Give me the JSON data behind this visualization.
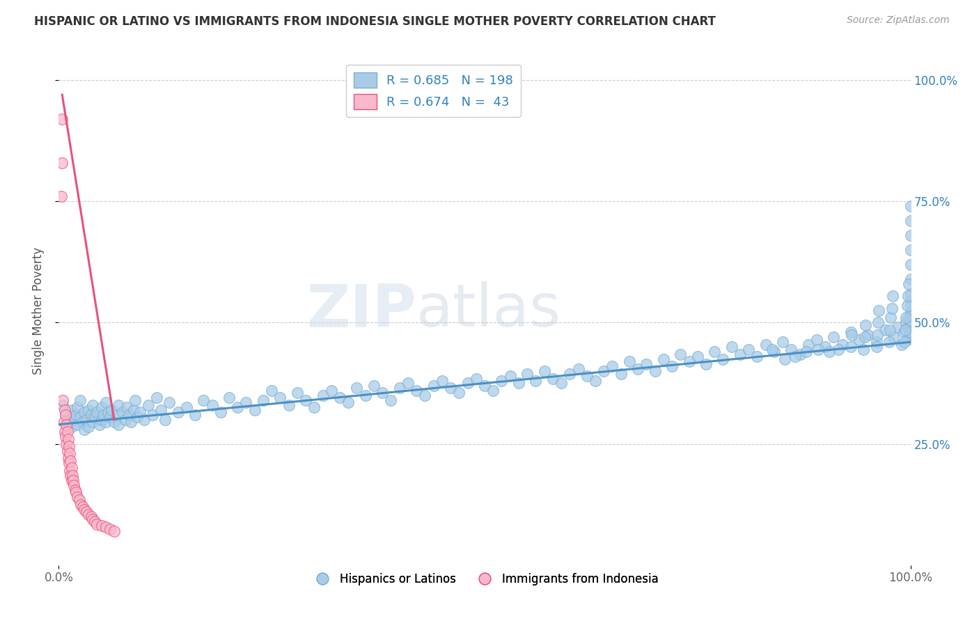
{
  "title": "HISPANIC OR LATINO VS IMMIGRANTS FROM INDONESIA SINGLE MOTHER POVERTY CORRELATION CHART",
  "source": "Source: ZipAtlas.com",
  "ylabel": "Single Mother Poverty",
  "watermark": "ZIPatlas",
  "blue_line_color": "#4a90c4",
  "pink_line_color": "#e8507a",
  "blue_scatter_color": "#a8cce8",
  "blue_scatter_edge": "#7aaed0",
  "pink_scatter_color": "#f9b8cb",
  "pink_scatter_edge": "#e8507a",
  "background_color": "#ffffff",
  "grid_color": "#cccccc",
  "title_color": "#333333",
  "legend_text_color": "#3182bd",
  "blue_points": [
    [
      0.005,
      0.33
    ],
    [
      0.008,
      0.31
    ],
    [
      0.01,
      0.305
    ],
    [
      0.012,
      0.295
    ],
    [
      0.015,
      0.32
    ],
    [
      0.015,
      0.285
    ],
    [
      0.018,
      0.3
    ],
    [
      0.02,
      0.31
    ],
    [
      0.022,
      0.325
    ],
    [
      0.022,
      0.29
    ],
    [
      0.025,
      0.305
    ],
    [
      0.025,
      0.34
    ],
    [
      0.028,
      0.295
    ],
    [
      0.03,
      0.315
    ],
    [
      0.03,
      0.28
    ],
    [
      0.032,
      0.3
    ],
    [
      0.035,
      0.32
    ],
    [
      0.035,
      0.285
    ],
    [
      0.038,
      0.31
    ],
    [
      0.04,
      0.295
    ],
    [
      0.04,
      0.33
    ],
    [
      0.042,
      0.305
    ],
    [
      0.045,
      0.315
    ],
    [
      0.048,
      0.29
    ],
    [
      0.05,
      0.325
    ],
    [
      0.05,
      0.3
    ],
    [
      0.052,
      0.31
    ],
    [
      0.055,
      0.335
    ],
    [
      0.055,
      0.295
    ],
    [
      0.058,
      0.315
    ],
    [
      0.06,
      0.305
    ],
    [
      0.062,
      0.32
    ],
    [
      0.065,
      0.295
    ],
    [
      0.068,
      0.31
    ],
    [
      0.07,
      0.33
    ],
    [
      0.07,
      0.29
    ],
    [
      0.075,
      0.315
    ],
    [
      0.078,
      0.3
    ],
    [
      0.08,
      0.325
    ],
    [
      0.082,
      0.31
    ],
    [
      0.085,
      0.295
    ],
    [
      0.088,
      0.32
    ],
    [
      0.09,
      0.34
    ],
    [
      0.092,
      0.305
    ],
    [
      0.095,
      0.315
    ],
    [
      0.1,
      0.3
    ],
    [
      0.105,
      0.33
    ],
    [
      0.11,
      0.31
    ],
    [
      0.115,
      0.345
    ],
    [
      0.12,
      0.32
    ],
    [
      0.125,
      0.3
    ],
    [
      0.13,
      0.335
    ],
    [
      0.14,
      0.315
    ],
    [
      0.15,
      0.325
    ],
    [
      0.16,
      0.31
    ],
    [
      0.17,
      0.34
    ],
    [
      0.18,
      0.33
    ],
    [
      0.19,
      0.315
    ],
    [
      0.2,
      0.345
    ],
    [
      0.21,
      0.325
    ],
    [
      0.22,
      0.335
    ],
    [
      0.23,
      0.32
    ],
    [
      0.24,
      0.34
    ],
    [
      0.25,
      0.36
    ],
    [
      0.26,
      0.345
    ],
    [
      0.27,
      0.33
    ],
    [
      0.28,
      0.355
    ],
    [
      0.29,
      0.34
    ],
    [
      0.3,
      0.325
    ],
    [
      0.31,
      0.35
    ],
    [
      0.32,
      0.36
    ],
    [
      0.33,
      0.345
    ],
    [
      0.34,
      0.335
    ],
    [
      0.35,
      0.365
    ],
    [
      0.36,
      0.35
    ],
    [
      0.37,
      0.37
    ],
    [
      0.38,
      0.355
    ],
    [
      0.39,
      0.34
    ],
    [
      0.4,
      0.365
    ],
    [
      0.41,
      0.375
    ],
    [
      0.42,
      0.36
    ],
    [
      0.43,
      0.35
    ],
    [
      0.44,
      0.37
    ],
    [
      0.45,
      0.38
    ],
    [
      0.46,
      0.365
    ],
    [
      0.47,
      0.355
    ],
    [
      0.48,
      0.375
    ],
    [
      0.49,
      0.385
    ],
    [
      0.5,
      0.37
    ],
    [
      0.51,
      0.36
    ],
    [
      0.52,
      0.38
    ],
    [
      0.53,
      0.39
    ],
    [
      0.54,
      0.375
    ],
    [
      0.55,
      0.395
    ],
    [
      0.56,
      0.38
    ],
    [
      0.57,
      0.4
    ],
    [
      0.58,
      0.385
    ],
    [
      0.59,
      0.375
    ],
    [
      0.6,
      0.395
    ],
    [
      0.61,
      0.405
    ],
    [
      0.62,
      0.39
    ],
    [
      0.63,
      0.38
    ],
    [
      0.64,
      0.4
    ],
    [
      0.65,
      0.41
    ],
    [
      0.66,
      0.395
    ],
    [
      0.67,
      0.42
    ],
    [
      0.68,
      0.405
    ],
    [
      0.69,
      0.415
    ],
    [
      0.7,
      0.4
    ],
    [
      0.71,
      0.425
    ],
    [
      0.72,
      0.41
    ],
    [
      0.73,
      0.435
    ],
    [
      0.74,
      0.42
    ],
    [
      0.75,
      0.43
    ],
    [
      0.76,
      0.415
    ],
    [
      0.77,
      0.44
    ],
    [
      0.78,
      0.425
    ],
    [
      0.79,
      0.45
    ],
    [
      0.8,
      0.435
    ],
    [
      0.81,
      0.445
    ],
    [
      0.82,
      0.43
    ],
    [
      0.83,
      0.455
    ],
    [
      0.84,
      0.44
    ],
    [
      0.85,
      0.46
    ],
    [
      0.86,
      0.445
    ],
    [
      0.87,
      0.435
    ],
    [
      0.88,
      0.455
    ],
    [
      0.89,
      0.465
    ],
    [
      0.9,
      0.45
    ],
    [
      0.91,
      0.47
    ],
    [
      0.92,
      0.455
    ],
    [
      0.93,
      0.48
    ],
    [
      0.94,
      0.465
    ],
    [
      0.95,
      0.475
    ],
    [
      0.96,
      0.46
    ],
    [
      0.97,
      0.485
    ],
    [
      0.98,
      0.47
    ],
    [
      0.985,
      0.49
    ],
    [
      0.99,
      0.455
    ],
    [
      0.992,
      0.48
    ],
    [
      0.995,
      0.5
    ],
    [
      0.996,
      0.465
    ],
    [
      0.997,
      0.49
    ],
    [
      0.998,
      0.51
    ],
    [
      0.999,
      0.475
    ],
    [
      1.0,
      0.495
    ],
    [
      1.0,
      0.52
    ],
    [
      1.0,
      0.545
    ],
    [
      1.0,
      0.48
    ],
    [
      1.0,
      0.505
    ],
    [
      1.0,
      0.535
    ],
    [
      1.0,
      0.56
    ],
    [
      1.0,
      0.59
    ],
    [
      1.0,
      0.62
    ],
    [
      1.0,
      0.65
    ],
    [
      1.0,
      0.68
    ],
    [
      1.0,
      0.71
    ],
    [
      1.0,
      0.74
    ],
    [
      0.993,
      0.46
    ],
    [
      0.994,
      0.485
    ],
    [
      0.995,
      0.51
    ],
    [
      0.996,
      0.535
    ],
    [
      0.997,
      0.555
    ],
    [
      0.998,
      0.58
    ],
    [
      0.975,
      0.46
    ],
    [
      0.976,
      0.485
    ],
    [
      0.977,
      0.51
    ],
    [
      0.978,
      0.53
    ],
    [
      0.979,
      0.555
    ],
    [
      0.96,
      0.45
    ],
    [
      0.961,
      0.475
    ],
    [
      0.962,
      0.5
    ],
    [
      0.963,
      0.525
    ],
    [
      0.945,
      0.445
    ],
    [
      0.946,
      0.47
    ],
    [
      0.947,
      0.495
    ],
    [
      0.93,
      0.45
    ],
    [
      0.931,
      0.475
    ],
    [
      0.915,
      0.445
    ],
    [
      0.905,
      0.44
    ],
    [
      0.892,
      0.445
    ],
    [
      0.878,
      0.44
    ],
    [
      0.865,
      0.43
    ],
    [
      0.852,
      0.425
    ],
    [
      0.838,
      0.445
    ]
  ],
  "pink_points": [
    [
      0.005,
      0.34
    ],
    [
      0.006,
      0.295
    ],
    [
      0.007,
      0.32
    ],
    [
      0.007,
      0.275
    ],
    [
      0.008,
      0.31
    ],
    [
      0.008,
      0.265
    ],
    [
      0.009,
      0.29
    ],
    [
      0.009,
      0.25
    ],
    [
      0.01,
      0.275
    ],
    [
      0.01,
      0.235
    ],
    [
      0.011,
      0.26
    ],
    [
      0.011,
      0.22
    ],
    [
      0.012,
      0.245
    ],
    [
      0.012,
      0.21
    ],
    [
      0.013,
      0.23
    ],
    [
      0.013,
      0.195
    ],
    [
      0.014,
      0.215
    ],
    [
      0.014,
      0.185
    ],
    [
      0.015,
      0.2
    ],
    [
      0.015,
      0.175
    ],
    [
      0.016,
      0.185
    ],
    [
      0.017,
      0.175
    ],
    [
      0.018,
      0.165
    ],
    [
      0.019,
      0.155
    ],
    [
      0.02,
      0.15
    ],
    [
      0.022,
      0.14
    ],
    [
      0.024,
      0.135
    ],
    [
      0.026,
      0.125
    ],
    [
      0.028,
      0.12
    ],
    [
      0.03,
      0.115
    ],
    [
      0.032,
      0.11
    ],
    [
      0.035,
      0.105
    ],
    [
      0.038,
      0.1
    ],
    [
      0.04,
      0.095
    ],
    [
      0.042,
      0.09
    ],
    [
      0.045,
      0.085
    ],
    [
      0.05,
      0.082
    ],
    [
      0.055,
      0.078
    ],
    [
      0.06,
      0.074
    ],
    [
      0.065,
      0.07
    ],
    [
      0.003,
      0.76
    ],
    [
      0.004,
      0.83
    ],
    [
      0.004,
      0.92
    ]
  ],
  "blue_line": {
    "x0": 0.0,
    "y0": 0.29,
    "x1": 1.0,
    "y1": 0.46
  },
  "pink_line": {
    "x0": 0.004,
    "y0": 0.97,
    "x1": 0.065,
    "y1": 0.3
  },
  "xlim": [
    0.0,
    1.0
  ],
  "ylim": [
    0.0,
    1.05
  ],
  "yticks": [
    0.25,
    0.5,
    0.75,
    1.0
  ],
  "ytick_labels_right": [
    "25.0%",
    "50.0%",
    "75.0%",
    "100.0%"
  ],
  "xticks": [
    0.0,
    1.0
  ],
  "xtick_labels": [
    "0.0%",
    "100.0%"
  ]
}
